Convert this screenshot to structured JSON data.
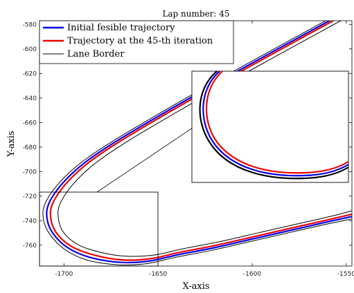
{
  "chart_data": {
    "type": "line",
    "title": "Lap number: 45",
    "xlabel": "X-axis",
    "ylabel": "Y-axis",
    "xlim": [
      -1713,
      -1547
    ],
    "ylim": [
      -777,
      -577
    ],
    "xticks": [
      -1700,
      -1650,
      -1600,
      -1550
    ],
    "yticks": [
      -580,
      -600,
      -620,
      -640,
      -660,
      -680,
      -700,
      -720,
      -740,
      -760
    ],
    "legend_position": "top-left",
    "grid": false,
    "series": [
      {
        "name": "Initial fesible trajectory",
        "color": "#0000ee",
        "x": [
          -1553,
          -1610,
          -1650,
          -1675,
          -1690,
          -1701,
          -1708,
          -1709,
          -1706,
          -1698,
          -1686,
          -1670,
          -1655,
          -1640,
          -1620,
          -1600,
          -1580,
          -1560,
          -1545
        ],
        "y": [
          -572,
          -620,
          -655,
          -678,
          -694,
          -710,
          -726,
          -738,
          -750,
          -762,
          -770,
          -774,
          -773,
          -768,
          -762,
          -755,
          -748,
          -741,
          -736
        ]
      },
      {
        "name": "Trajectory at the 45-th iteration",
        "color": "#ee0000",
        "x": [
          -1551,
          -1608,
          -1648,
          -1673,
          -1688,
          -1699,
          -1706,
          -1707,
          -1704,
          -1696,
          -1684,
          -1669,
          -1654,
          -1639,
          -1619,
          -1599,
          -1579,
          -1559,
          -1545
        ],
        "y": [
          -572,
          -620,
          -655,
          -678,
          -694,
          -710,
          -726,
          -738,
          -750,
          -761,
          -768,
          -772,
          -771,
          -766,
          -760,
          -753,
          -746,
          -739,
          -734
        ]
      },
      {
        "name": "Lane Border",
        "color": "#000000",
        "x": [
          -1555,
          -1612,
          -1652,
          -1677,
          -1692,
          -1703,
          -1710,
          -1711,
          -1708,
          -1700,
          -1688,
          -1671,
          -1656,
          -1641,
          -1621,
          -1601,
          -1581,
          -1561,
          -1545
        ],
        "y": [
          -572,
          -620,
          -655,
          -678,
          -694,
          -710,
          -726,
          -738,
          -750,
          -763,
          -772,
          -776,
          -775,
          -770,
          -764,
          -757,
          -750,
          -743,
          -738
        ]
      },
      {
        "name": "",
        "color": "#000000",
        "x": [
          -1547,
          -1604,
          -1644,
          -1669,
          -1684,
          -1695,
          -1702,
          -1703,
          -1700,
          -1692,
          -1680,
          -1667,
          -1652,
          -1637,
          -1617,
          -1597,
          -1577,
          -1557,
          -1545
        ],
        "y": [
          -572,
          -620,
          -655,
          -678,
          -694,
          -710,
          -726,
          -738,
          -750,
          -760,
          -766,
          -769,
          -768,
          -763,
          -757,
          -750,
          -743,
          -736,
          -731
        ]
      }
    ]
  }
}
